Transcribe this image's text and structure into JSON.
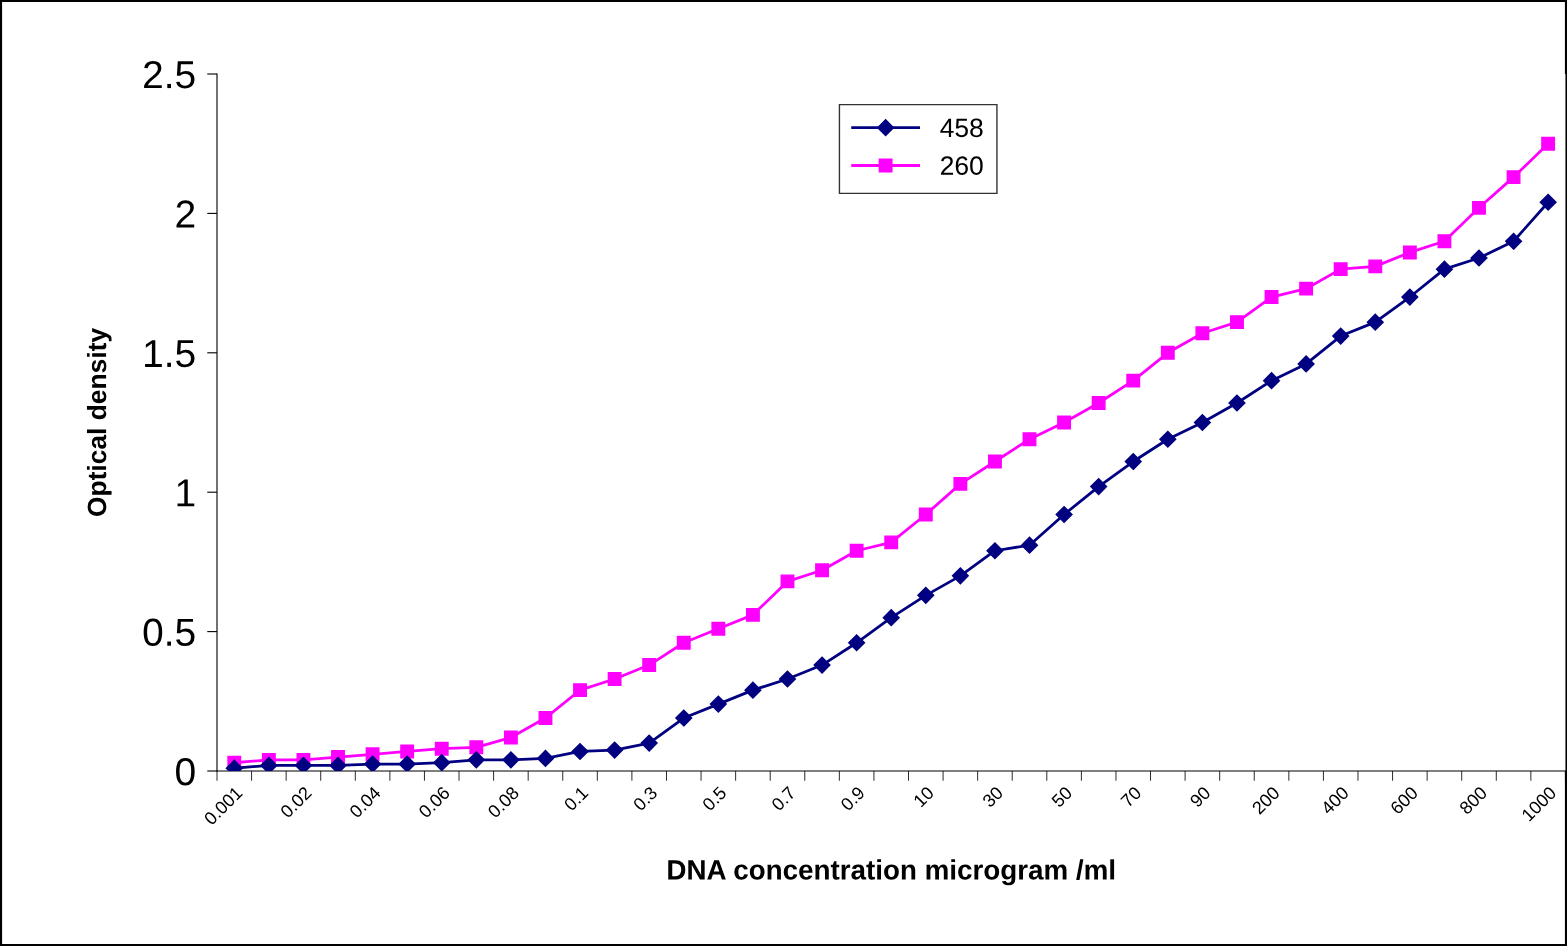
{
  "chart_data": {
    "type": "line",
    "xlabel": "DNA concentration microgram /ml",
    "ylabel": "Optical density",
    "categories": [
      "0.001",
      null,
      "0.02",
      null,
      "0.04",
      null,
      "0.06",
      null,
      "0.08",
      null,
      "0.1",
      null,
      "0.3",
      null,
      "0.5",
      null,
      "0.7",
      null,
      "0.9",
      null,
      "10",
      null,
      "30",
      null,
      "50",
      null,
      "70",
      null,
      "90",
      null,
      "200",
      null,
      "400",
      null,
      "600",
      null,
      "800",
      null,
      "1000"
    ],
    "series": [
      {
        "name": "458",
        "color": "#000080",
        "marker": "diamond",
        "values": [
          0.01,
          0.02,
          0.02,
          0.02,
          0.025,
          0.025,
          0.03,
          0.04,
          0.04,
          0.045,
          0.07,
          0.075,
          0.1,
          0.19,
          0.24,
          0.29,
          0.33,
          0.38,
          0.46,
          0.55,
          0.63,
          0.7,
          0.79,
          0.81,
          0.92,
          1.02,
          1.11,
          1.19,
          1.25,
          1.32,
          1.4,
          1.46,
          1.56,
          1.61,
          1.7,
          1.8,
          1.84,
          1.9,
          2.04
        ]
      },
      {
        "name": "260",
        "color": "#ff00ff",
        "marker": "square",
        "values": [
          0.03,
          0.04,
          0.04,
          0.05,
          0.06,
          0.07,
          0.08,
          0.085,
          0.12,
          0.19,
          0.29,
          0.33,
          0.38,
          0.46,
          0.51,
          0.56,
          0.68,
          0.72,
          0.79,
          0.82,
          0.92,
          1.03,
          1.11,
          1.19,
          1.25,
          1.32,
          1.4,
          1.5,
          1.57,
          1.61,
          1.7,
          1.73,
          1.8,
          1.81,
          1.86,
          1.9,
          2.02,
          2.13,
          2.25
        ]
      }
    ],
    "ylim": [
      0,
      2.5
    ],
    "yticks": [
      0,
      0.5,
      1,
      1.5,
      2,
      2.5
    ],
    "grid": false,
    "legend": "top",
    "line_style": "solid"
  }
}
